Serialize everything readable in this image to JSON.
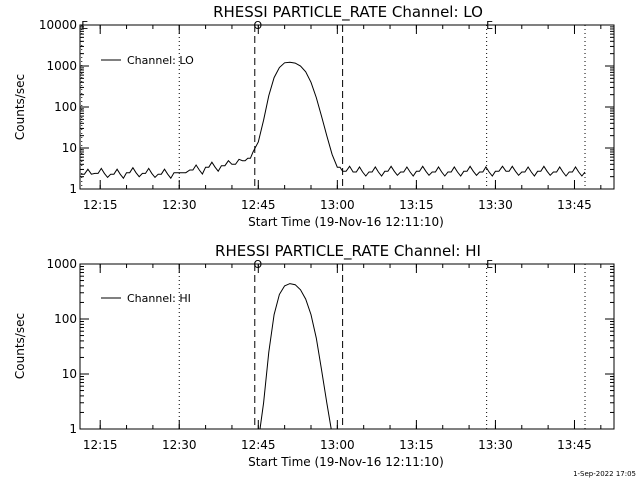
{
  "chart_data": [
    {
      "type": "line",
      "title": "RHESSI PARTICLE_RATE Channel: LO",
      "xlabel": "Start Time (19-Nov-16 12:11:10)",
      "ylabel": "Counts/sec",
      "y_scale": "log",
      "xlim": [
        "12:11:10",
        "13:52:30"
      ],
      "ylim": [
        1,
        10000
      ],
      "x_ticks": [
        "12:15",
        "12:30",
        "12:45",
        "13:00",
        "13:15",
        "13:30",
        "13:45"
      ],
      "y_ticks": [
        "1",
        "10",
        "100",
        "1000",
        "10000"
      ],
      "legend": {
        "position": "top-left",
        "entries": [
          "Channel: LO"
        ]
      },
      "annotations": [
        {
          "label": "E",
          "x": "12:11:30",
          "style": "dotted"
        },
        {
          "label": "",
          "x": "12:30:00",
          "style": "dotted"
        },
        {
          "label": "O",
          "x": "12:44:20",
          "style": "dashed"
        },
        {
          "label": "",
          "x": "13:01:00",
          "style": "dashed"
        },
        {
          "label": "E",
          "x": "13:28:20",
          "style": "dotted"
        },
        {
          "label": "",
          "x": "13:47:00",
          "style": "dotted"
        }
      ],
      "series": [
        {
          "name": "Channel: LO",
          "x": [
            "12:11:20",
            "12:14:00",
            "12:17:00",
            "12:20:00",
            "12:23:00",
            "12:26:00",
            "12:29:00",
            "12:30:30",
            "12:32:00",
            "12:35:00",
            "12:38:00",
            "12:40:00",
            "12:42:00",
            "12:43:00",
            "12:44:00",
            "12:45:00",
            "12:46:00",
            "12:47:00",
            "12:48:00",
            "12:49:00",
            "12:50:00",
            "12:51:00",
            "12:52:00",
            "12:53:00",
            "12:54:00",
            "12:55:00",
            "12:56:00",
            "12:57:00",
            "12:58:00",
            "12:59:00",
            "13:00:00",
            "13:01:00",
            "13:03:00",
            "13:06:00",
            "13:09:00",
            "13:12:00",
            "13:15:00",
            "13:18:00",
            "13:21:00",
            "13:24:00",
            "13:27:00",
            "13:30:00",
            "13:32:00",
            "13:35:00",
            "13:38:00",
            "13:41:00",
            "13:44:00",
            "13:47:00"
          ],
          "y": [
            2.3,
            2.4,
            2.3,
            2.5,
            2.4,
            2.3,
            2.5,
            2.5,
            2.9,
            3.4,
            3.7,
            4.0,
            4.9,
            5.6,
            8,
            14,
            48,
            190,
            520,
            920,
            1200,
            1230,
            1180,
            1000,
            720,
            400,
            170,
            60,
            20,
            7,
            3.4,
            2.7,
            2.6,
            2.6,
            2.7,
            2.6,
            2.7,
            2.6,
            2.6,
            2.7,
            2.6,
            2.7,
            2.7,
            2.6,
            2.7,
            2.6,
            2.6,
            2.6
          ]
        }
      ]
    },
    {
      "type": "line",
      "title": "RHESSI PARTICLE_RATE Channel: HI",
      "xlabel": "Start Time (19-Nov-16 12:11:10)",
      "ylabel": "Counts/sec",
      "y_scale": "log",
      "xlim": [
        "12:11:10",
        "13:52:30"
      ],
      "ylim": [
        1,
        1000
      ],
      "x_ticks": [
        "12:15",
        "12:30",
        "12:45",
        "13:00",
        "13:15",
        "13:30",
        "13:45"
      ],
      "y_ticks": [
        "1",
        "10",
        "100",
        "1000"
      ],
      "legend": {
        "position": "top-left",
        "entries": [
          "Channel: HI"
        ]
      },
      "annotations": [
        {
          "label": "",
          "x": "12:30:00",
          "style": "dotted"
        },
        {
          "label": "O",
          "x": "12:44:20",
          "style": "dashed"
        },
        {
          "label": "",
          "x": "13:01:00",
          "style": "dashed"
        },
        {
          "label": "E",
          "x": "13:28:20",
          "style": "dotted"
        },
        {
          "label": "",
          "x": "13:47:00",
          "style": "dotted"
        }
      ],
      "series": [
        {
          "name": "Channel: HI",
          "x": [
            "12:45:20",
            "12:46:00",
            "12:47:00",
            "12:48:00",
            "12:49:00",
            "12:50:00",
            "12:51:00",
            "12:52:00",
            "12:53:00",
            "12:54:00",
            "12:55:00",
            "12:56:00",
            "12:57:00",
            "12:58:00",
            "12:58:50"
          ],
          "y": [
            1,
            3,
            25,
            120,
            280,
            400,
            440,
            420,
            340,
            230,
            120,
            45,
            12,
            3,
            1
          ]
        }
      ]
    }
  ],
  "footer": {
    "timestamp": "1-Sep-2022 17:05"
  }
}
